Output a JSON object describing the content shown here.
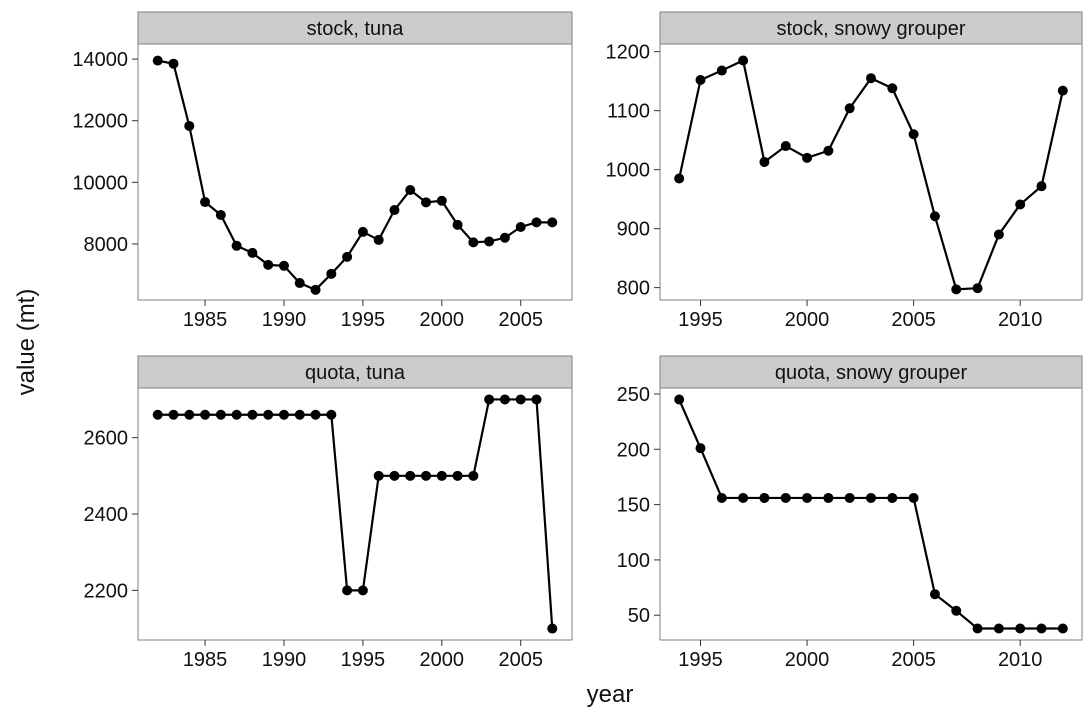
{
  "x_label": "year",
  "y_label": "value (mt)",
  "chart_data": [
    {
      "type": "line",
      "title": "stock, tuna",
      "color": "#000000",
      "x": [
        1982,
        1983,
        1984,
        1985,
        1986,
        1987,
        1988,
        1989,
        1990,
        1991,
        1992,
        1993,
        1994,
        1995,
        1996,
        1997,
        1998,
        1999,
        2000,
        2001,
        2002,
        2003,
        2004,
        2005,
        2006,
        2007
      ],
      "values": [
        13950,
        13850,
        11830,
        9360,
        8940,
        7940,
        7710,
        7320,
        7290,
        6730,
        6510,
        7030,
        7580,
        8390,
        8130,
        9100,
        9750,
        9350,
        9400,
        8620,
        8050,
        8080,
        8200,
        8550,
        8700,
        8700
      ],
      "xlim": [
        1980.75,
        2008.25
      ],
      "xticks": [
        1985,
        1990,
        1995,
        2000,
        2005
      ],
      "ylim": [
        6180,
        14490
      ],
      "yticks": [
        8000,
        10000,
        12000,
        14000
      ]
    },
    {
      "type": "line",
      "title": "stock, snowy grouper",
      "color": "#000000",
      "x": [
        1994,
        1995,
        1996,
        1997,
        1998,
        1999,
        2000,
        2001,
        2002,
        2003,
        2004,
        2005,
        2006,
        2007,
        2008,
        2009,
        2010,
        2011,
        2012
      ],
      "values": [
        985,
        1152,
        1168,
        1185,
        1013,
        1040,
        1020,
        1032,
        1104,
        1155,
        1138,
        1060,
        921,
        797,
        799,
        890,
        941,
        972,
        1134
      ],
      "xlim": [
        1993.1,
        2012.9
      ],
      "xticks": [
        1995,
        2000,
        2005,
        2010
      ],
      "ylim": [
        779,
        1213
      ],
      "yticks": [
        800,
        900,
        1000,
        1100,
        1200
      ]
    },
    {
      "type": "line",
      "title": "quota, tuna",
      "color": "#000000",
      "x": [
        1982,
        1983,
        1984,
        1985,
        1986,
        1987,
        1988,
        1989,
        1990,
        1991,
        1992,
        1993,
        1994,
        1995,
        1996,
        1997,
        1998,
        1999,
        2000,
        2001,
        2002,
        2003,
        2004,
        2005,
        2006,
        2007
      ],
      "values": [
        2660,
        2660,
        2660,
        2660,
        2660,
        2660,
        2660,
        2660,
        2660,
        2660,
        2660,
        2660,
        2200,
        2200,
        2500,
        2500,
        2500,
        2500,
        2500,
        2500,
        2500,
        2700,
        2700,
        2700,
        2700,
        2100
      ],
      "xlim": [
        1980.75,
        2008.25
      ],
      "xticks": [
        1985,
        1990,
        1995,
        2000,
        2005
      ],
      "ylim": [
        2070,
        2730
      ],
      "yticks": [
        2200,
        2400,
        2600
      ]
    },
    {
      "type": "line",
      "title": "quota, snowy grouper",
      "color": "#000000",
      "x": [
        1994,
        1995,
        1996,
        1997,
        1998,
        1999,
        2000,
        2001,
        2002,
        2003,
        2004,
        2005,
        2006,
        2007,
        2008,
        2009,
        2010,
        2011,
        2012
      ],
      "values": [
        245,
        201,
        156,
        156,
        156,
        156,
        156,
        156,
        156,
        156,
        156,
        156,
        69,
        54,
        38,
        38,
        38,
        38,
        38
      ],
      "xlim": [
        1993.1,
        2012.9
      ],
      "xticks": [
        1995,
        2000,
        2005,
        2010
      ],
      "ylim": [
        27.6,
        255.4
      ],
      "yticks": [
        50,
        100,
        150,
        200,
        250
      ]
    }
  ]
}
